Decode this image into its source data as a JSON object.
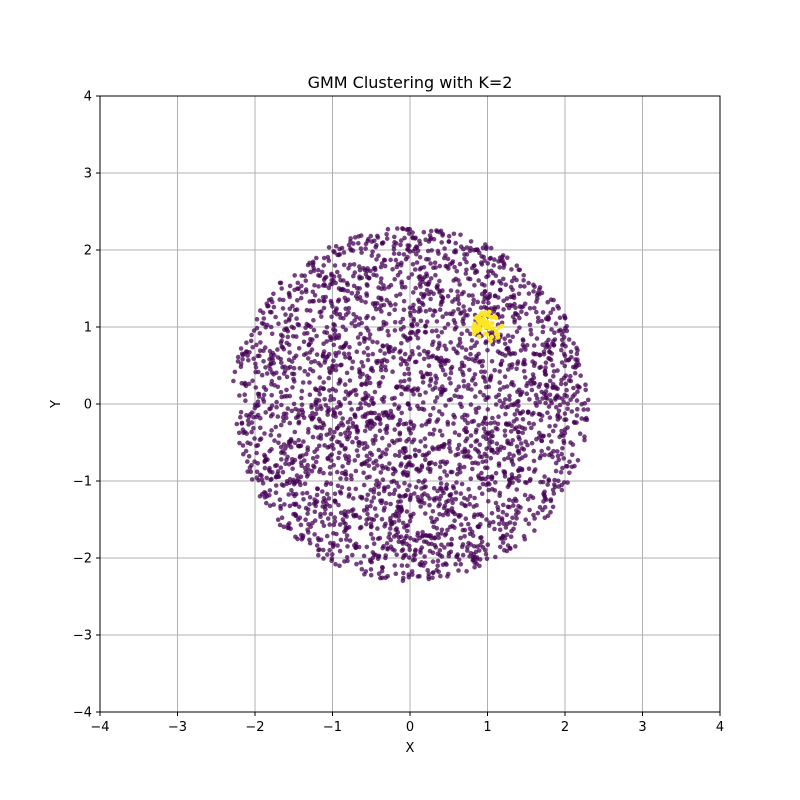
{
  "chart_data": {
    "type": "scatter",
    "title": "GMM Clustering with K=2",
    "xlabel": "X",
    "ylabel": "Y",
    "xlim": [
      -4,
      4
    ],
    "ylim": [
      -4,
      4
    ],
    "xticks": [
      -4,
      -3,
      -2,
      -1,
      0,
      1,
      2,
      3,
      4
    ],
    "yticks": [
      -4,
      -3,
      -2,
      -1,
      0,
      1,
      2,
      3,
      4
    ],
    "xtick_labels": [
      "−4",
      "−3",
      "−2",
      "−1",
      "0",
      "1",
      "2",
      "3",
      "4"
    ],
    "ytick_labels": [
      "−4",
      "−3",
      "−2",
      "−1",
      "0",
      "1",
      "2",
      "3",
      "4"
    ],
    "grid": true,
    "legend": "none",
    "series": [
      {
        "cluster": 0,
        "color": "#440154",
        "distribution": "uniform disk",
        "center": [
          0,
          0
        ],
        "radius": 2.3,
        "count": 3000,
        "opacity": 0.75
      },
      {
        "cluster": 1,
        "color": "#fde725",
        "distribution": "small dense blob",
        "center": [
          1.0,
          1.0
        ],
        "radius": 0.2,
        "count": 60,
        "opacity": 1.0
      }
    ]
  }
}
